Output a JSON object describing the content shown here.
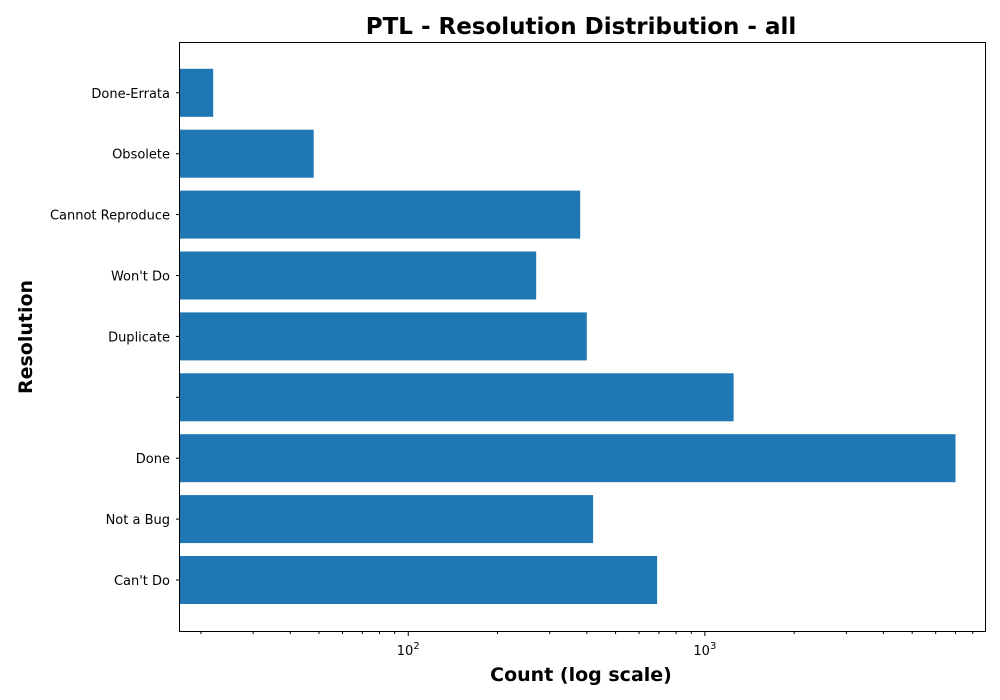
{
  "chart_data": {
    "type": "bar",
    "orientation": "horizontal",
    "title": "PTL - Resolution Distribution - all",
    "xlabel": "Count (log scale)",
    "ylabel": "Resolution",
    "x_scale": "log",
    "xlim": [
      17,
      8800
    ],
    "x_ticks": [
      {
        "value": 100,
        "base": "10",
        "exp": "2"
      },
      {
        "value": 1000,
        "base": "10",
        "exp": "3"
      }
    ],
    "categories": [
      "Can't Do",
      "Not a Bug",
      "Done",
      "",
      "Duplicate",
      "Won't Do",
      "Cannot Reproduce",
      "Obsolete",
      "Done-Errata"
    ],
    "values": [
      690,
      420,
      7000,
      1250,
      400,
      270,
      380,
      48,
      22
    ],
    "bar_color": "#1f77b4",
    "grid": false,
    "legend": "none"
  }
}
